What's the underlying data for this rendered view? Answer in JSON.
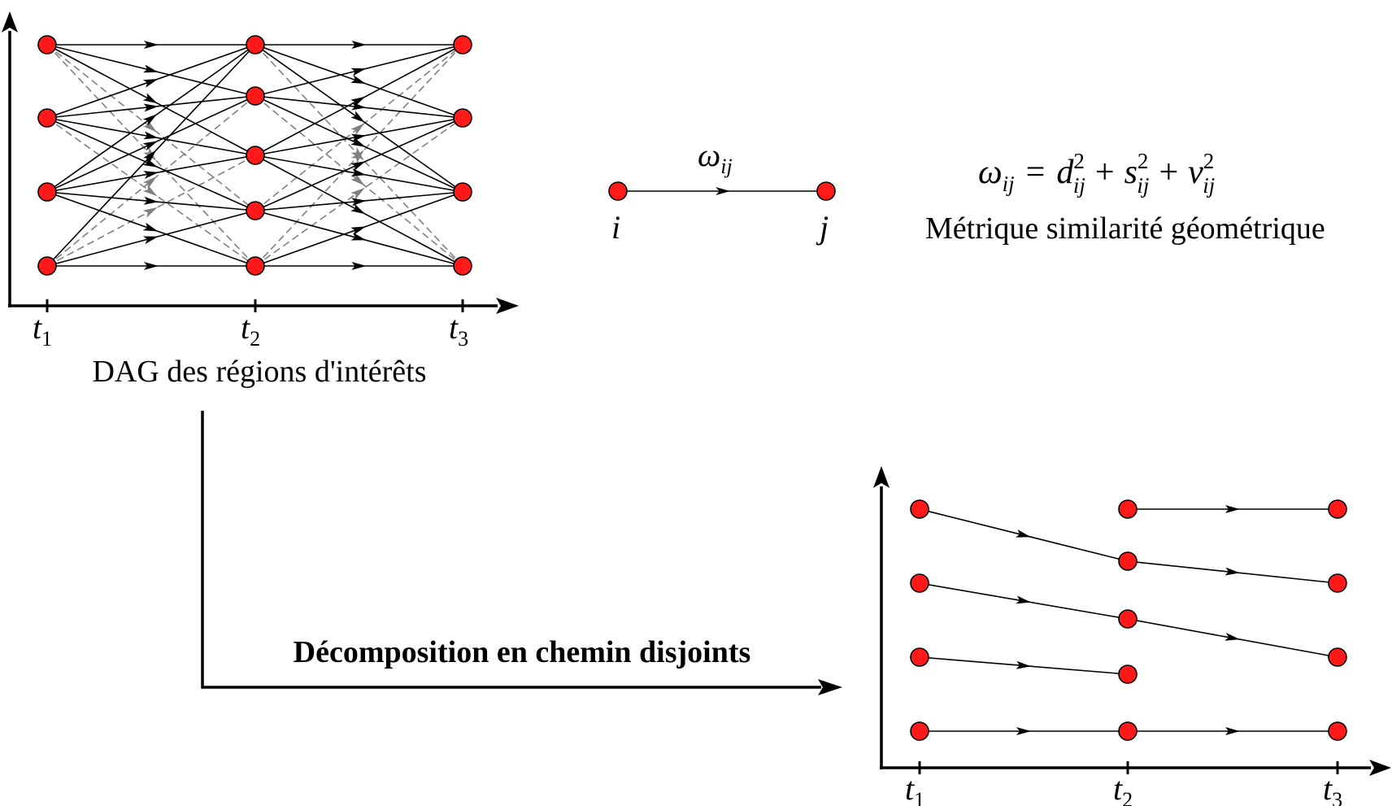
{
  "colors": {
    "node_fill": "#ff1a1a",
    "node_stroke": "#000000",
    "edge": "#000000",
    "dashed_edge": "#808080",
    "background": "#ffffff"
  },
  "dag": {
    "caption": "DAG des régions d'intérêts",
    "time_labels": [
      {
        "base": "t",
        "sub": "1"
      },
      {
        "base": "t",
        "sub": "2"
      },
      {
        "base": "t",
        "sub": "3"
      }
    ],
    "nodes_per_time": [
      4,
      5,
      4
    ]
  },
  "edge_legend": {
    "weight_label": {
      "base": "ω",
      "sub": "ij"
    },
    "source_label": "i",
    "target_label": "j"
  },
  "metric": {
    "formula": {
      "lhs": {
        "base": "ω",
        "sub": "ij"
      },
      "terms": [
        {
          "base": "d",
          "sup": "2",
          "sub": "ij"
        },
        {
          "base": "s",
          "sup": "2",
          "sub": "ij"
        },
        {
          "base": "v",
          "sup": "2",
          "sub": "ij"
        }
      ],
      "equals": "=",
      "plus": "+"
    },
    "caption": "Métrique similarité géométrique"
  },
  "decomposition": {
    "label": "Décomposition en chemin disjoints",
    "time_labels": [
      {
        "base": "t",
        "sub": "1"
      },
      {
        "base": "t",
        "sub": "2"
      },
      {
        "base": "t",
        "sub": "3"
      }
    ],
    "paths_count": 5
  }
}
